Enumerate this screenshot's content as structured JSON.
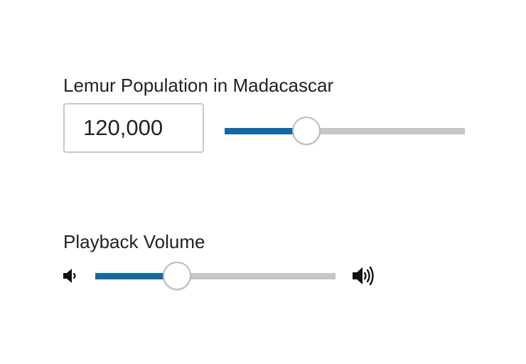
{
  "lemur_control": {
    "label": "Lemur Population in Madacascar",
    "input_value": "120,000",
    "slider_fraction": 0.34
  },
  "volume_control": {
    "label": "Playback Volume",
    "slider_fraction": 0.34,
    "low_icon": "volume-low-icon",
    "high_icon": "volume-high-icon"
  },
  "colors": {
    "track_fill": "#1568a4",
    "track_rail": "#c6c6c6",
    "thumb_border": "#bcbcbc"
  }
}
